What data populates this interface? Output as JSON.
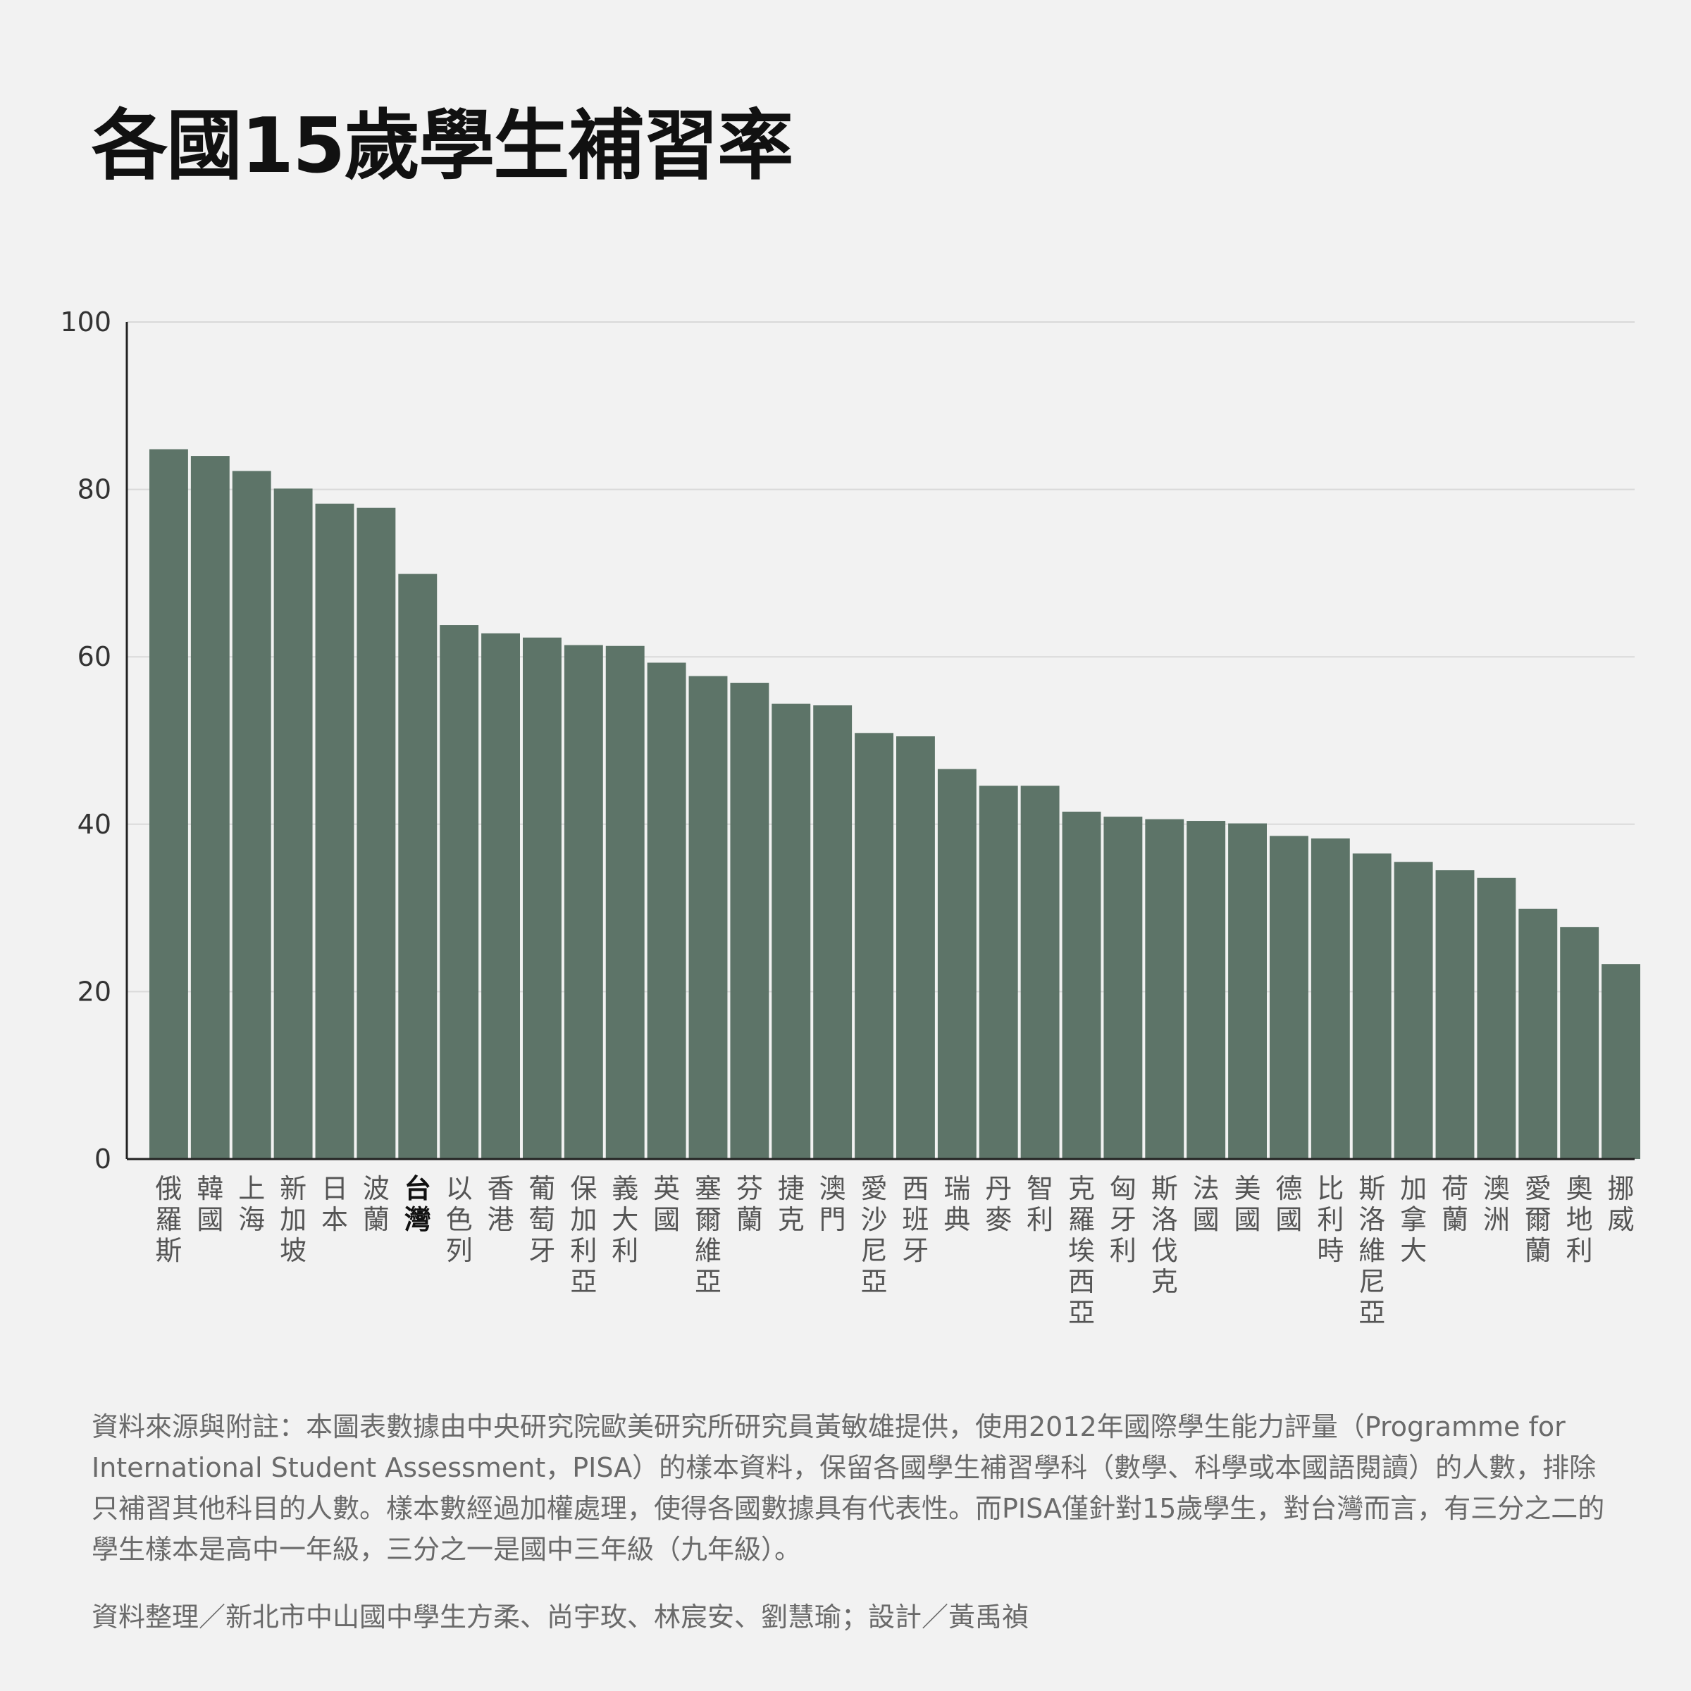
{
  "title": "各國15歲學生補習率",
  "chart_data": {
    "type": "bar",
    "title": "各國15歲學生補習率",
    "xlabel": "",
    "ylabel": "",
    "ylim": [
      0,
      100
    ],
    "yticks": [
      "0",
      "20",
      "40",
      "60",
      "80",
      "100"
    ],
    "grid": true,
    "highlight": "台灣",
    "bar_color": "#5d7468",
    "categories": [
      "俄羅斯",
      "韓國",
      "上海",
      "新加坡",
      "日本",
      "波蘭",
      "台灣",
      "以色列",
      "香港",
      "葡萄牙",
      "保加利亞",
      "義大利",
      "英國",
      "塞爾維亞",
      "芬蘭",
      "捷克",
      "澳門",
      "愛沙尼亞",
      "西班牙",
      "瑞典",
      "丹麥",
      "智利",
      "克羅埃西亞",
      "匈牙利",
      "斯洛伐克",
      "法國",
      "美國",
      "德國",
      "比利時",
      "斯洛維尼亞",
      "加拿大",
      "荷蘭",
      "澳洲",
      "愛爾蘭",
      "奧地利",
      "挪威"
    ],
    "values": [
      84.8,
      84.0,
      82.2,
      80.1,
      78.3,
      77.8,
      69.9,
      63.8,
      62.8,
      62.3,
      61.4,
      61.3,
      59.3,
      57.7,
      56.9,
      54.4,
      54.2,
      50.9,
      50.5,
      46.6,
      44.6,
      44.6,
      41.5,
      40.9,
      40.6,
      40.4,
      40.1,
      38.6,
      38.3,
      36.5,
      35.5,
      34.5,
      33.6,
      29.9,
      27.7,
      23.3
    ]
  },
  "notes": "資料來源與附註：本圖表數據由中央研究院歐美研究所研究員黃敏雄提供，使用2012年國際學生能力評量（Programme for International Student Assessment，PISA）的樣本資料，保留各國學生補習學科（數學、科學或本國語閱讀）的人數，排除只補習其他科目的人數。樣本數經過加權處理，使得各國數據具有代表性。而PISA僅針對15歲學生，對台灣而言，有三分之二的學生樣本是高中一年級，三分之一是國中三年級（九年級）。",
  "credits": "資料整理／新北市中山國中學生方柔、尚宇玫、林宸安、劉慧瑜；設計／黃禹禎"
}
